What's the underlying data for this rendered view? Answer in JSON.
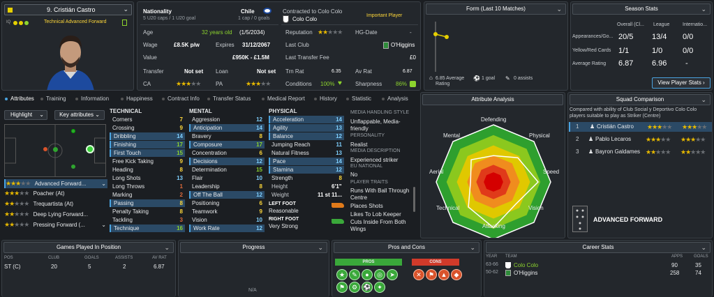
{
  "profile": {
    "name": "9. Cristián Castro",
    "role": "Technical Advanced Forward"
  },
  "info": {
    "nationality_label": "Nationality",
    "nationality": "Chile",
    "caps_note": "5 U20 caps / 1 U20 goal",
    "caps": "1 cap / 0 goals",
    "contracted_label": "Contracted to Colo Colo",
    "club": "Colo Colo",
    "squad_status": "Important Player",
    "age_label": "Age",
    "age": "32 years old",
    "dob": "(1/5/2034)",
    "wage_label": "Wage",
    "wage": "£8.5K p/w",
    "expires_label": "Expires",
    "expires": "31/12/2067",
    "value_label": "Value",
    "value": "£950K - £1.5M",
    "transfer_label": "Transfer",
    "transfer": "Not set",
    "loan_label": "Loan",
    "loan": "Not set",
    "ca_label": "CA",
    "pa_label": "PA",
    "reputation_label": "Reputation",
    "hg_label": "HG-Date",
    "hg": "-",
    "last_club_label": "Last Club",
    "last_club": "O'Higgins",
    "last_fee_label": "Last Transfer Fee",
    "last_fee": "£0",
    "trn_label": "Trn Rat",
    "trn": "6.35",
    "av_label": "Av Rat",
    "av": "6.87",
    "cond_label": "Conditions",
    "cond": "100%",
    "sharp_label": "Sharpness",
    "sharp": "86%"
  },
  "form": {
    "title": "Form (Last 10 Matches)",
    "avg": "6.85 Average Rating",
    "goals": "1 goal",
    "assists": "0 assists"
  },
  "season": {
    "title": "Season Stats",
    "cols": [
      "Overall (Cl...",
      "League",
      "Internatio..."
    ],
    "rows": [
      {
        "label": "Appearances/Go...",
        "v": [
          "20/5",
          "13/4",
          "0/0"
        ]
      },
      {
        "label": "Yellow/Red Cards",
        "v": [
          "1/1",
          "1/0",
          "0/0"
        ]
      },
      {
        "label": "Average Rating",
        "v": [
          "6.87",
          "6.96",
          "-"
        ]
      }
    ],
    "button": "View Player Stats"
  },
  "tabs": [
    "Attributes",
    "Training",
    "Information",
    "Happiness",
    "Contract Info",
    "Transfer Status",
    "Medical Report",
    "History",
    "Statistic",
    "Analysis"
  ],
  "controls": {
    "highlight": "Highlight",
    "keyattr": "Key attributes"
  },
  "roles": [
    {
      "name": "Advanced Forward...",
      "stars": "★★★",
      "empty": "★★"
    },
    {
      "name": "Poacher (At)",
      "stars": "★★★",
      "empty": "★★"
    },
    {
      "name": "Trequartista (At)",
      "stars": "★★",
      "empty": "★★★"
    },
    {
      "name": "Deep Lying Forward...",
      "stars": "★★",
      "empty": "★★★"
    },
    {
      "name": "Pressing Forward (...",
      "stars": "★★",
      "empty": "★★★"
    }
  ],
  "technical": {
    "title": "TECHNICAL",
    "attrs": [
      [
        "Corners",
        "7"
      ],
      [
        "Crossing",
        "9"
      ],
      [
        "Dribbling",
        "14"
      ],
      [
        "Finishing",
        "17"
      ],
      [
        "First Touch",
        "15"
      ],
      [
        "Free Kick Taking",
        "9"
      ],
      [
        "Heading",
        "8"
      ],
      [
        "Long Shots",
        "13"
      ],
      [
        "Long Throws",
        "1"
      ],
      [
        "Marking",
        "2"
      ],
      [
        "Passing",
        "8"
      ],
      [
        "Penalty Taking",
        "8"
      ],
      [
        "Tackling",
        "3"
      ],
      [
        "Technique",
        "16"
      ]
    ]
  },
  "mental": {
    "title": "MENTAL",
    "attrs": [
      [
        "Aggression",
        "12"
      ],
      [
        "Anticipation",
        "14"
      ],
      [
        "Bravery",
        "8"
      ],
      [
        "Composure",
        "17"
      ],
      [
        "Concentration",
        "6"
      ],
      [
        "Decisions",
        "12"
      ],
      [
        "Determination",
        "15"
      ],
      [
        "Flair",
        "10"
      ],
      [
        "Leadership",
        "8"
      ],
      [
        "Off The Ball",
        "12"
      ],
      [
        "Positioning",
        "6"
      ],
      [
        "Teamwork",
        "9"
      ],
      [
        "Vision",
        "10"
      ],
      [
        "Work Rate",
        "12"
      ]
    ]
  },
  "physical": {
    "title": "PHYSICAL",
    "attrs": [
      [
        "Acceleration",
        "14"
      ],
      [
        "Agility",
        "13"
      ],
      [
        "Balance",
        "12"
      ],
      [
        "Jumping Reach",
        "11"
      ],
      [
        "Natural Fitness",
        "13"
      ],
      [
        "Pace",
        "14"
      ],
      [
        "Stamina",
        "12"
      ],
      [
        "Strength",
        "8"
      ]
    ],
    "height_label": "Height",
    "height": "6'1\"",
    "weight_label": "Weight",
    "weight": "11 st 11...",
    "left_foot_label": "LEFT FOOT",
    "left_foot": "Reasonable",
    "right_foot_label": "RIGHT FOOT",
    "right_foot": "Very Strong"
  },
  "media": {
    "style_label": "MEDIA HANDLING STYLE",
    "style": "Unflappable, Media-friendly",
    "personality_label": "PERSONALITY",
    "personality": "Realist",
    "desc_label": "MEDIA DESCRIPTION",
    "desc": "Experienced striker",
    "eu_label": "EU NATIONAL",
    "eu": "No",
    "traits_label": "PLAYER TRAITS",
    "traits": [
      "Runs With Ball Through Centre",
      "Places Shots",
      "Likes To Lob Keeper",
      "Cuts Inside From Both Wings"
    ]
  },
  "analysis": {
    "title": "Attribute Analysis",
    "axes": [
      "Defending",
      "Physical",
      "Speed",
      "Vision",
      "Attacking",
      "Technical",
      "Aerial",
      "Mental"
    ]
  },
  "squad": {
    "title": "Squad Comparison",
    "note": "Compared with ability of Club Social y Deportivo Colo Colo players suitable to play as Striker (Centre)",
    "players": [
      {
        "rank": "1",
        "name": "Cristián Castro"
      },
      {
        "rank": "2",
        "name": "Pablo Lecaros"
      },
      {
        "rank": "3",
        "name": "Bayron Galdames"
      }
    ],
    "position": "ADVANCED FORWARD"
  },
  "games": {
    "title": "Games Played In Position",
    "cols": [
      "POS",
      "CLUB",
      "GOALS",
      "ASSISTS",
      "AV RAT"
    ],
    "row": [
      "ST (C)",
      "20",
      "5",
      "2",
      "6.87"
    ]
  },
  "progress": {
    "title": "Progress",
    "na": "N/A"
  },
  "proscons": {
    "title": "Pros and Cons",
    "pros": "PROS",
    "cons": "CONS"
  },
  "career": {
    "title": "Career Stats",
    "cols": [
      "YEAR",
      "TEAM",
      "APPS",
      "GOALS"
    ],
    "rows": [
      {
        "year": "63-66",
        "team": "Colo Colo",
        "apps": "90",
        "goals": "35"
      },
      {
        "year": "50-62",
        "team": "O'Higgins",
        "apps": "258",
        "goals": "74"
      }
    ]
  },
  "colors": {
    "green": "#8dd42e",
    "yellow": "#ffd83a",
    "accent": "#4aa3e0"
  }
}
